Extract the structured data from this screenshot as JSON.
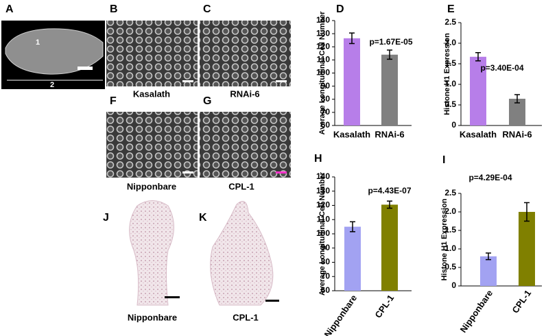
{
  "panels": {
    "A": {
      "label": "A",
      "marks": [
        "1",
        "2"
      ]
    },
    "B": {
      "label": "B",
      "caption": "Kasalath"
    },
    "C": {
      "label": "C",
      "caption": "RNAi-6"
    },
    "F": {
      "label": "F",
      "caption": "Nipponbare"
    },
    "G": {
      "label": "G",
      "caption": "CPL-1"
    },
    "J": {
      "label": "J",
      "caption": "Nipponbare"
    },
    "K": {
      "label": "K",
      "caption": "CPL-1"
    }
  },
  "chart_data": [
    {
      "type": "bar",
      "panel": "D",
      "ylabel": "Average Longitudinal Cell Number",
      "annotation": "p=1.67E-05",
      "categories": [
        "Kasalath",
        "RNAi-6"
      ],
      "values": [
        126.5,
        114
      ],
      "errors": [
        4,
        3.5
      ],
      "colors": [
        "#b77ee9",
        "#808080"
      ],
      "ylim": [
        60,
        140
      ],
      "yticks": [
        60,
        70,
        80,
        90,
        100,
        110,
        120,
        130,
        140
      ]
    },
    {
      "type": "bar",
      "panel": "E",
      "ylabel": "Histone H1 Expression",
      "annotation": "p=3.40E-04",
      "categories": [
        "Kasalath",
        "RNAi-6"
      ],
      "values": [
        1.67,
        0.65
      ],
      "errors": [
        0.1,
        0.1
      ],
      "colors": [
        "#b77ee9",
        "#808080"
      ],
      "ylim": [
        0,
        2.5
      ],
      "yticks": [
        0,
        0.5,
        {
          "value": 1,
          "label": "1.0"
        },
        1.5,
        {
          "value": 2,
          "label": "2.0"
        },
        2.5
      ]
    },
    {
      "type": "bar",
      "panel": "H",
      "ylabel": "Average Longitudinal Cell Number",
      "annotation": "p=4.43E-07",
      "categories": [
        "Nipponbare",
        "CPL-1"
      ],
      "values": [
        105,
        120.5
      ],
      "errors": [
        3.5,
        2.5
      ],
      "colors": [
        "#a2a2f2",
        "#808000"
      ],
      "ylim": [
        60,
        140
      ],
      "yticks": [
        60,
        70,
        80,
        90,
        100,
        110,
        120,
        130,
        140
      ]
    },
    {
      "type": "bar",
      "panel": "I",
      "ylabel": "Histone H1 Expression",
      "annotation": "p=4.29E-04",
      "categories": [
        "Nipponbare",
        "CPL-1"
      ],
      "values": [
        0.8,
        2.0
      ],
      "errors": [
        0.09,
        0.25
      ],
      "colors": [
        "#a2a2f2",
        "#808000"
      ],
      "ylim": [
        0,
        2.5
      ],
      "yticks": [
        0,
        0.5,
        {
          "value": 1,
          "label": "1.0"
        },
        1.5,
        {
          "value": 2,
          "label": "2.0"
        },
        2.5
      ]
    }
  ]
}
